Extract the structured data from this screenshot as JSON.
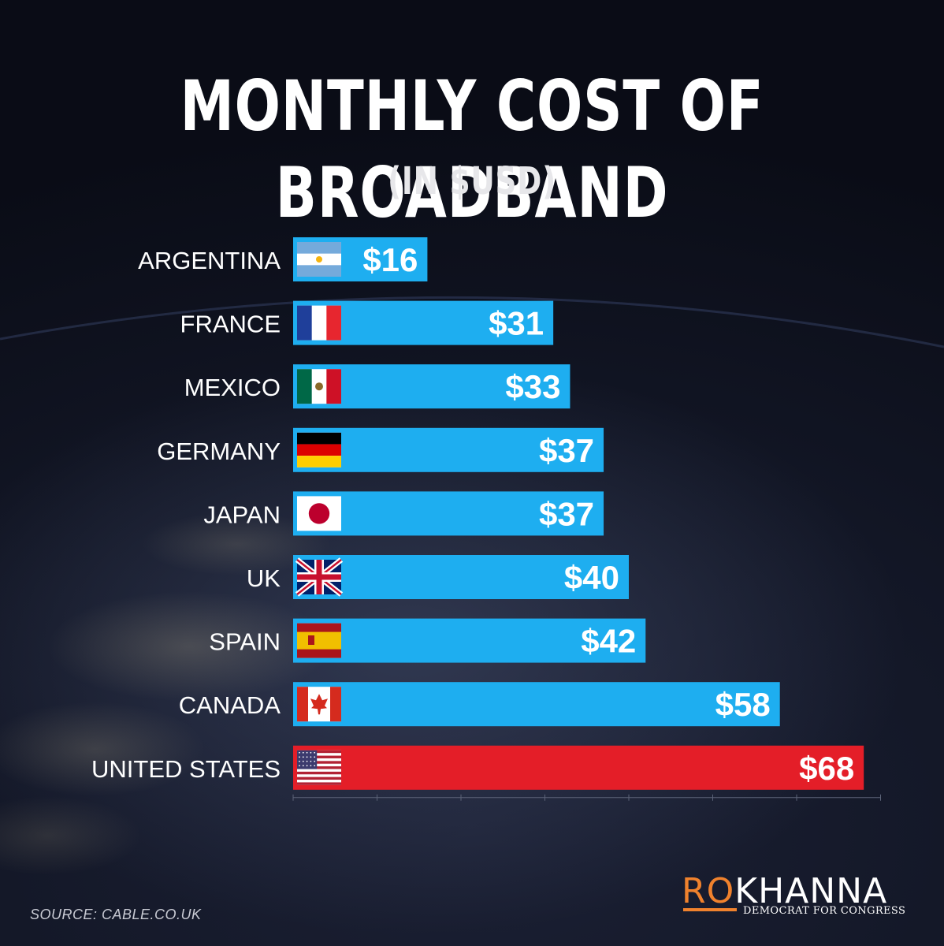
{
  "chart_data": {
    "type": "bar",
    "orientation": "horizontal",
    "title": "MONTHLY COST OF BROADBAND",
    "subtitle": "(IN $USD)",
    "categories": [
      "ARGENTINA",
      "FRANCE",
      "MEXICO",
      "GERMANY",
      "JAPAN",
      "UK",
      "SPAIN",
      "CANADA",
      "UNITED STATES"
    ],
    "values": [
      16,
      31,
      33,
      37,
      37,
      40,
      42,
      58,
      68
    ],
    "value_labels": [
      "$16",
      "$31",
      "$33",
      "$37",
      "$37",
      "$40",
      "$42",
      "$58",
      "$68"
    ],
    "flag_icons": [
      "flag-argentina-icon",
      "flag-france-icon",
      "flag-mexico-icon",
      "flag-germany-icon",
      "flag-japan-icon",
      "flag-uk-icon",
      "flag-spain-icon",
      "flag-canada-icon",
      "flag-usa-icon"
    ],
    "xlim": [
      0,
      70
    ],
    "legend": "none",
    "grid": false
  },
  "colors": {
    "bar_default": "#1eaef0",
    "bar_highlight": "#e41e28",
    "text": "#ffffff",
    "accent": "#f0822d"
  },
  "source": "SOURCE: CABLE.CO.UK",
  "logo": {
    "ro": "RO",
    "khanna": "KHANNA",
    "tagline": "DEMOCRAT FOR CONGRESS"
  }
}
